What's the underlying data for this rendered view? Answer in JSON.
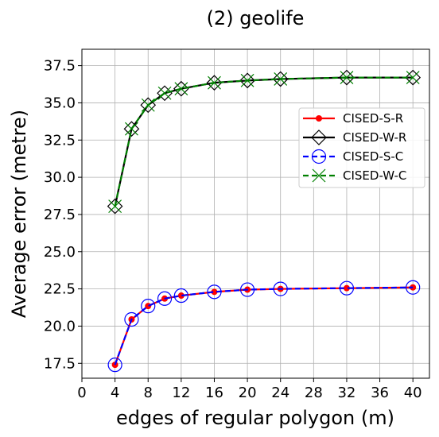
{
  "chart_data": {
    "type": "line",
    "title": "(2) geolife",
    "xlabel": "edges of regular polygon (m)",
    "ylabel": "Average error (metre)",
    "xlim": [
      0,
      42
    ],
    "ylim": [
      16.5,
      38.6
    ],
    "xticks": [
      0,
      4,
      8,
      12,
      16,
      20,
      24,
      28,
      32,
      36,
      40
    ],
    "yticks": [
      17.5,
      20.0,
      22.5,
      25.0,
      27.5,
      30.0,
      32.5,
      35.0,
      37.5
    ],
    "grid": true,
    "legend_position": "center-right",
    "x": [
      4,
      6,
      8,
      10,
      12,
      16,
      20,
      24,
      32,
      40
    ],
    "series": [
      {
        "name": "CISED-S-R",
        "values": [
          17.4,
          20.45,
          21.35,
          21.85,
          22.05,
          22.3,
          22.45,
          22.5,
          22.55,
          22.6
        ],
        "color": "#ff0000",
        "marker": "filled-circle",
        "line": "solid"
      },
      {
        "name": "CISED-W-R",
        "values": [
          28.05,
          33.25,
          34.85,
          35.65,
          35.95,
          36.35,
          36.5,
          36.6,
          36.7,
          36.7
        ],
        "color": "#000000",
        "marker": "diamond",
        "line": "solid"
      },
      {
        "name": "CISED-S-C",
        "values": [
          17.4,
          20.45,
          21.35,
          21.85,
          22.05,
          22.3,
          22.45,
          22.5,
          22.55,
          22.6
        ],
        "color": "#0000ff",
        "marker": "open-circle",
        "line": "dashed"
      },
      {
        "name": "CISED-W-C",
        "values": [
          28.05,
          33.25,
          34.85,
          35.65,
          35.95,
          36.35,
          36.5,
          36.6,
          36.7,
          36.7
        ],
        "color": "#008000",
        "marker": "x",
        "line": "dashed"
      }
    ]
  }
}
